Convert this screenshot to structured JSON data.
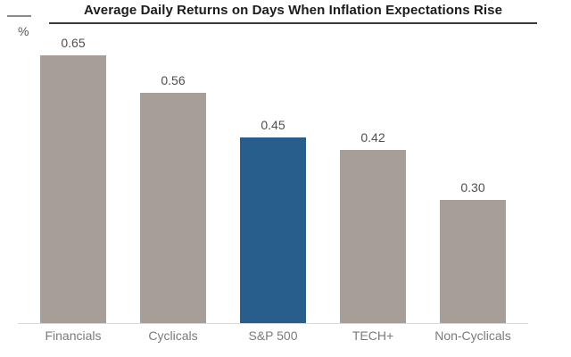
{
  "chart_data": {
    "type": "bar",
    "title": "Average Daily Returns on Days When Inflation Expectations Rise",
    "ylabel": "%",
    "xlabel": "",
    "categories": [
      "Financials",
      "Cyclicals",
      "S&P 500",
      "TECH+",
      "Non-Cyclicals"
    ],
    "values": [
      0.65,
      0.56,
      0.45,
      0.42,
      0.3
    ],
    "data_labels": [
      "0.65",
      "0.56",
      "0.45",
      "0.42",
      "0.30"
    ],
    "ylim": [
      0,
      0.7
    ],
    "grid": false,
    "legend": false,
    "highlight_index": 2,
    "highlighted_category": "S&P 500",
    "colors": {
      "bar": "#a79f97",
      "highlight": "#275e8c",
      "baseline": "#d8d8d8",
      "title": "#1c1c1c",
      "value_label": "#4f4f4f",
      "category_label": "#7a7a7a"
    }
  }
}
